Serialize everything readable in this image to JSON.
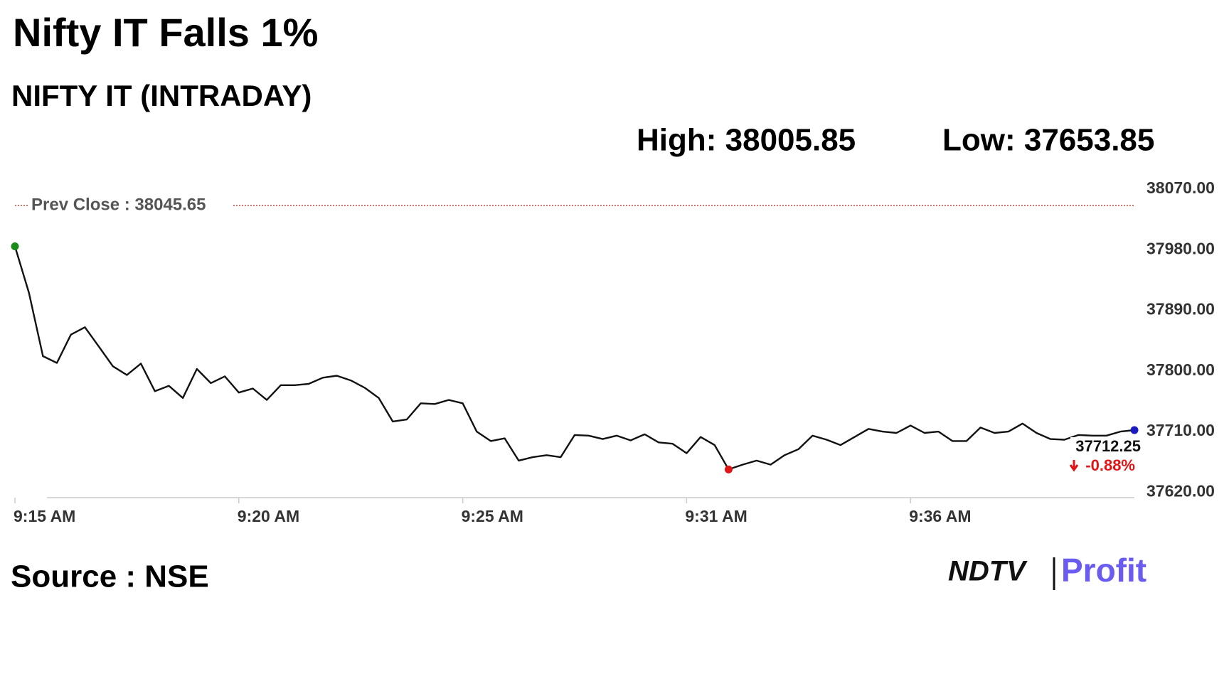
{
  "chart_data": {
    "type": "line",
    "title": "Nifty IT Falls 1%",
    "subtitle": "NIFTY IT (INTRADAY)",
    "high_label": "High: 38005.85",
    "low_label": "Low: 37653.85",
    "source": "Source : NSE",
    "brand": {
      "left": "NDTV",
      "right": "Profit"
    },
    "categories": [
      "9:15 AM",
      null,
      null,
      null,
      null,
      null,
      null,
      null,
      null,
      null,
      null,
      null,
      null,
      null,
      null,
      null,
      "9:20 AM",
      null,
      null,
      null,
      null,
      null,
      null,
      null,
      null,
      null,
      null,
      null,
      null,
      null,
      null,
      null,
      "9:25 AM",
      null,
      null,
      null,
      null,
      null,
      null,
      null,
      null,
      null,
      null,
      null,
      null,
      null,
      null,
      null,
      "9:31 AM",
      null,
      null,
      null,
      null,
      null,
      null,
      null,
      null,
      null,
      null,
      null,
      null,
      null,
      null,
      null,
      "9:36 AM",
      null,
      null,
      null,
      null,
      null,
      null,
      null,
      null,
      null,
      null,
      null,
      null,
      null,
      null,
      null,
      null
    ],
    "values": [
      37985,
      37916,
      37822,
      37812,
      37854,
      37865,
      37836,
      37807,
      37794,
      37811,
      37770,
      37778,
      37760,
      37803,
      37782,
      37792,
      37768,
      37774,
      37757,
      37779,
      37779,
      37781,
      37790,
      37793,
      37786,
      37775,
      37760,
      37725,
      37728,
      37752,
      37751,
      37757,
      37752,
      37710,
      37696,
      37700,
      37667,
      37672,
      37675,
      37672,
      37705,
      37704,
      37699,
      37704,
      37697,
      37706,
      37694,
      37692,
      37678,
      37702,
      37690,
      37653.85,
      37661,
      37667,
      37661,
      37675,
      37684,
      37704,
      37698,
      37690,
      37702,
      37714,
      37710,
      37708,
      37719,
      37708,
      37710,
      37696,
      37696,
      37716,
      37708,
      37710,
      37722,
      37708,
      37699,
      37698,
      37705,
      37704,
      37704,
      37710,
      37712.25
    ],
    "color": "#111111",
    "marker_colors": {
      "open": "#1a8a1a",
      "low": "#e01515",
      "last": "#1a1ac0"
    },
    "change_label": "-0.88%",
    "change_color": "#e01515",
    "prev_close": {
      "value": 38045.65,
      "label": "Prev Close : 38045.65"
    },
    "prev_close_color": "#c0392b",
    "ylim": [
      37612,
      38070
    ],
    "yticks": [
      {
        "value": 37620,
        "label": "37620.00"
      },
      {
        "value": 37710,
        "label": "37710.00"
      },
      {
        "value": 37800,
        "label": "37800.00"
      },
      {
        "value": 37890,
        "label": "37890.00"
      },
      {
        "value": 37980,
        "label": "37980.00"
      },
      {
        "value": 38070,
        "label": "38070.00"
      }
    ],
    "grid": false
  }
}
